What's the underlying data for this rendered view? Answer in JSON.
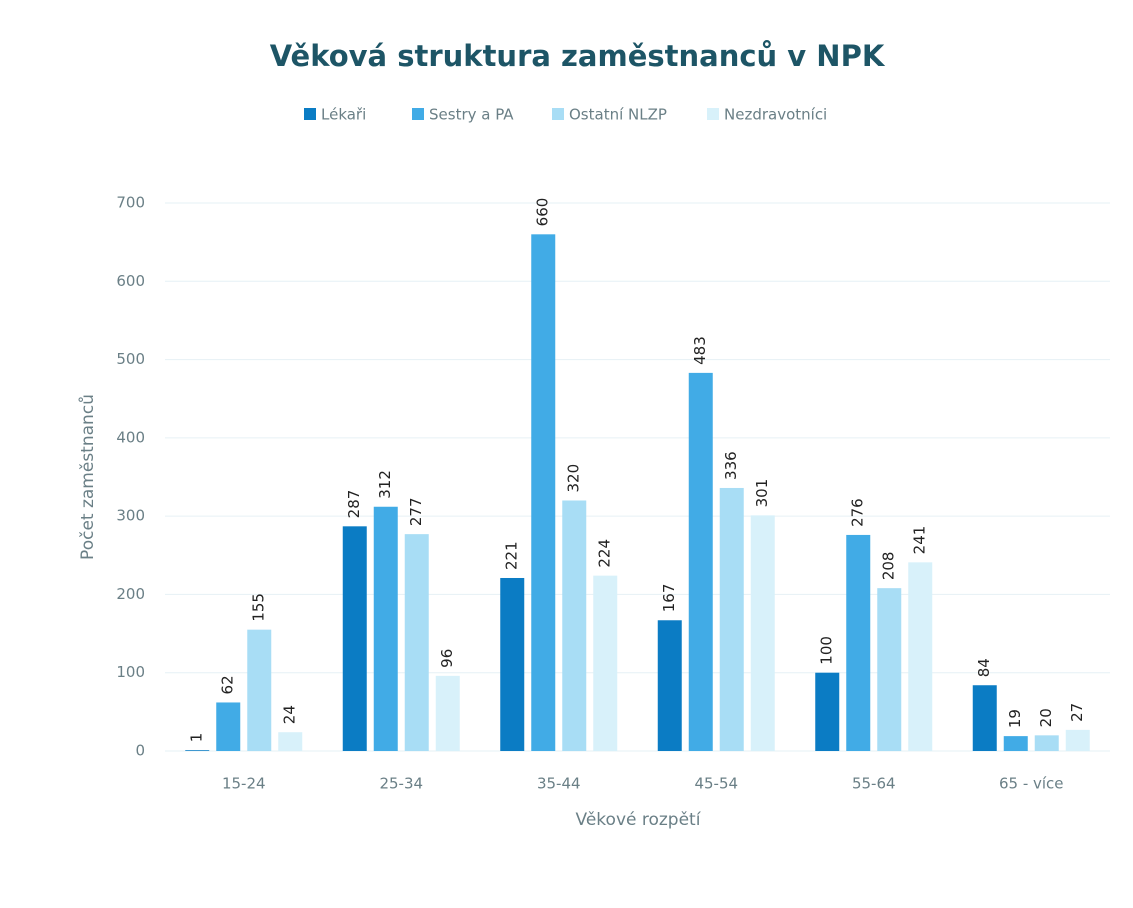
{
  "chart_data": {
    "type": "bar",
    "title": "Věková struktura zaměstnanců v NPK",
    "x_label": "Věkové rozpětí",
    "y_label": "Počet zaměstnanců",
    "categories": [
      "15-24",
      "25-34",
      "35-44",
      "45-54",
      "55-64",
      "65 - více"
    ],
    "series": [
      {
        "name": "Lékaři",
        "color": "#0b7cc4",
        "values": [
          1,
          287,
          221,
          167,
          100,
          84
        ]
      },
      {
        "name": "Sestry a PA",
        "color": "#41abe6",
        "values": [
          62,
          312,
          660,
          483,
          276,
          19
        ]
      },
      {
        "name": "Ostatní NLZP",
        "color": "#a8ddf5",
        "values": [
          155,
          277,
          320,
          336,
          208,
          20
        ]
      },
      {
        "name": "Nezdravotníci",
        "color": "#d8f1fa",
        "values": [
          24,
          96,
          224,
          301,
          241,
          27
        ]
      }
    ],
    "ylim": [
      0,
      700
    ],
    "yticks": [
      0,
      100,
      200,
      300,
      400,
      500,
      600,
      700
    ],
    "grid": true,
    "legend": "top"
  }
}
